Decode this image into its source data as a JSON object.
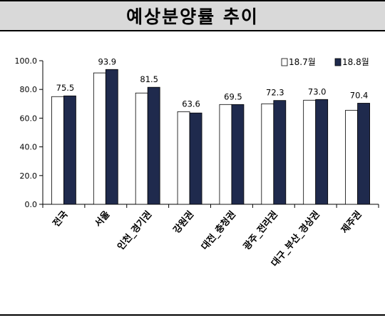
{
  "title": "예상분양률 추이",
  "chart_data": {
    "type": "bar",
    "title": "예상분양률 추이",
    "categories": [
      "전국",
      "서울",
      "인천_경기권",
      "강원권",
      "대전_충청권",
      "광주_전라권",
      "대구_부산_경상권",
      "제주권"
    ],
    "series": [
      {
        "name": "18.7월",
        "color": "#ffffff",
        "values": [
          75.0,
          91.5,
          77.5,
          64.5,
          69.5,
          70.0,
          72.5,
          65.5
        ]
      },
      {
        "name": "18.8월",
        "color": "#1f2a4d",
        "values": [
          75.5,
          93.9,
          81.5,
          63.6,
          69.5,
          72.3,
          73.0,
          70.4
        ]
      }
    ],
    "data_labels": [
      "75.5",
      "93.9",
      "81.5",
      "63.6",
      "69.5",
      "72.3",
      "73.0",
      "70.4"
    ],
    "yticks": [
      "0.0",
      "20.0",
      "40.0",
      "60.0",
      "80.0",
      "100.0"
    ],
    "ylim": [
      0,
      100
    ],
    "legend_position": "top-right",
    "grid": false
  }
}
